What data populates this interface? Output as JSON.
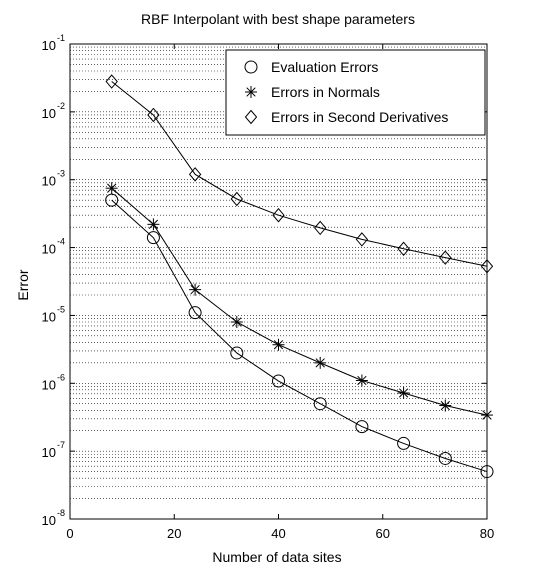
{
  "chart_data": {
    "type": "line",
    "title": "RBF Interpolant with best shape parameters",
    "xlabel": "Number of data sites",
    "ylabel": "Error",
    "xlim": [
      0,
      80
    ],
    "ylim": [
      1e-08,
      0.1
    ],
    "yscale": "log",
    "grid": "y-major-and-minor",
    "legend_position": "top-right",
    "x_ticks": [
      0,
      20,
      40,
      60,
      80
    ],
    "y_tick_exponents": [
      -8,
      -7,
      -6,
      -5,
      -4,
      -3,
      -2,
      -1
    ],
    "y_tick_base": "10",
    "x": [
      8,
      16,
      24,
      32,
      40,
      48,
      56,
      64,
      72,
      80
    ],
    "series": [
      {
        "name": "Evaluation Errors",
        "marker": "circle",
        "values": [
          0.0005,
          0.00014,
          1.1e-05,
          2.8e-06,
          1.08e-06,
          5e-07,
          2.3e-07,
          1.3e-07,
          7.8e-08,
          5e-08
        ]
      },
      {
        "name": "Errors in Normals",
        "marker": "asterisk",
        "values": [
          0.00075,
          0.00022,
          2.4e-05,
          8e-06,
          3.7e-06,
          2e-06,
          1.1e-06,
          7.2e-07,
          4.7e-07,
          3.4e-07
        ]
      },
      {
        "name": "Errors in Second Derivatives",
        "marker": "diamond",
        "values": [
          0.028,
          0.009,
          0.0012,
          0.00052,
          0.0003,
          0.000195,
          0.000132,
          9.6e-05,
          7.1e-05,
          5.3e-05
        ]
      }
    ]
  }
}
